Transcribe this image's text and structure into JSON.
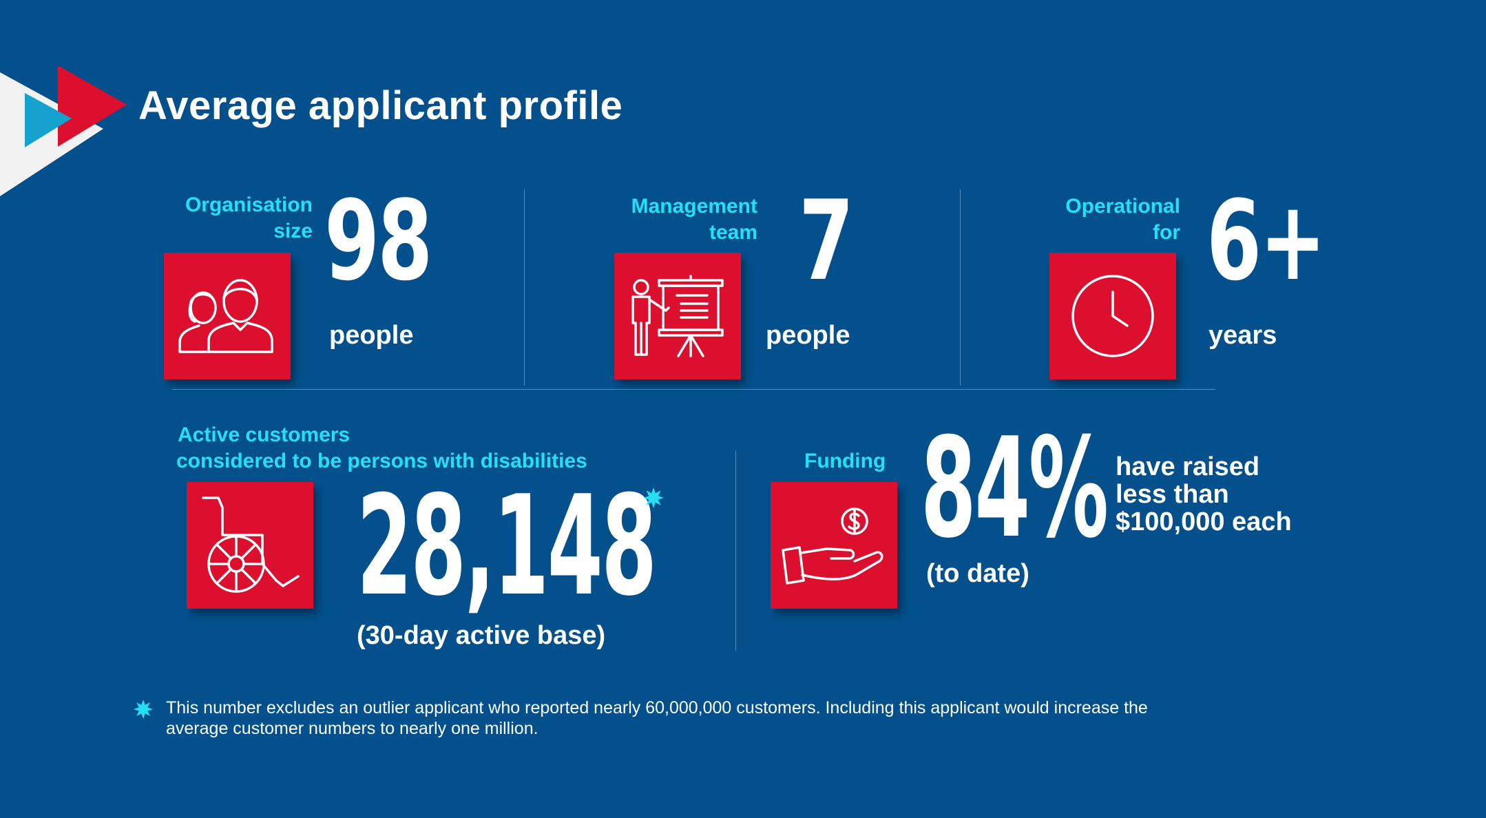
{
  "title": "Average applicant profile",
  "colors": {
    "background": "#03508c",
    "accent_red": "#dc0f2f",
    "label_cyan": "#25e0f5"
  },
  "stats": {
    "organisation": {
      "label_line1": "Organisation",
      "label_line2": "size",
      "value": "98",
      "unit": "people",
      "icon": "two-people-icon"
    },
    "management": {
      "label_line1": "Management",
      "label_line2": "team",
      "value": "7",
      "unit": "people",
      "icon": "presenter-icon"
    },
    "operational": {
      "label_line1": "Operational",
      "label_line2": "for",
      "value": "6+",
      "unit": "years",
      "icon": "clock-icon"
    },
    "customers": {
      "label_line1": "Active customers",
      "label_line2": "considered to be persons with disabilities",
      "value": "28,148",
      "unit": "(30-day active base)",
      "icon": "wheelchair-icon"
    },
    "funding": {
      "label": "Funding",
      "value": "84%",
      "sub": "(to date)",
      "desc_line1": "have raised",
      "desc_line2": "less than",
      "desc_line3": "$100,000 each",
      "icon": "hand-money-icon"
    }
  },
  "footnote": {
    "line1": "This number excludes an outlier applicant who reported nearly 60,000,000 customers. Including this applicant would increase the",
    "line2": "average customer numbers to nearly one million."
  }
}
